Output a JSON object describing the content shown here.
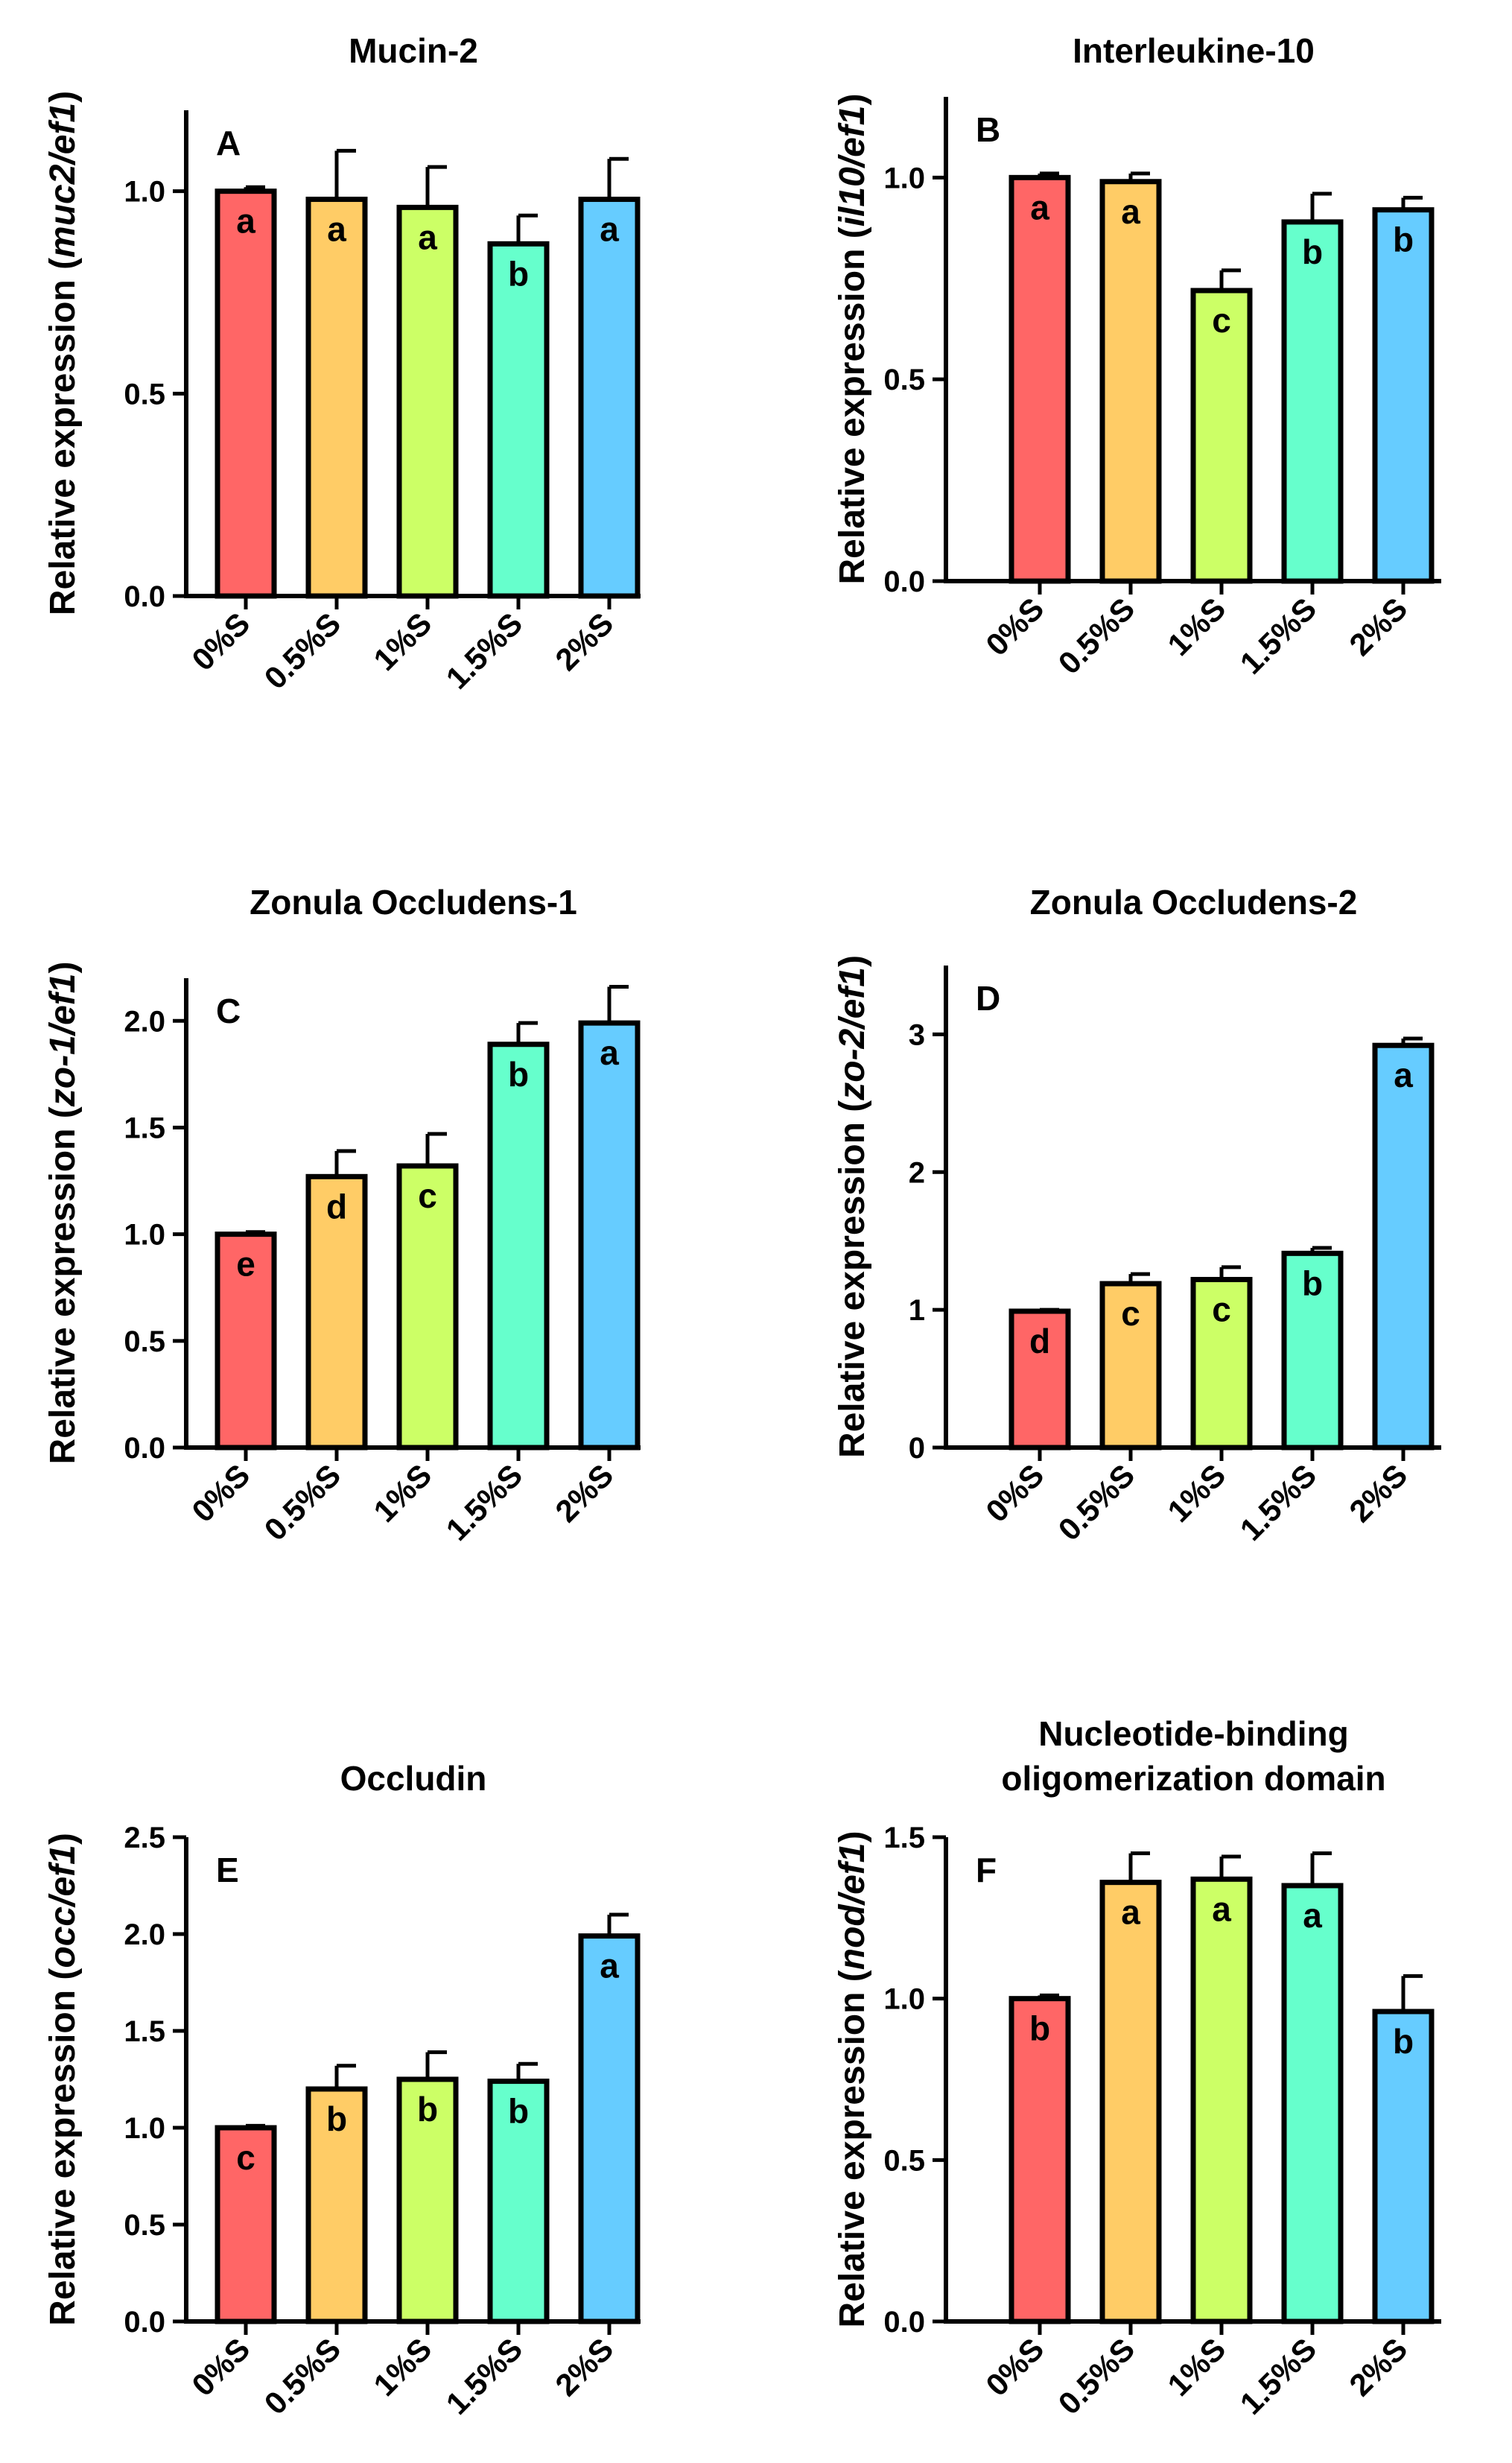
{
  "figure": {
    "categories": [
      "0%S",
      "0.5%S",
      "1%S",
      "1.5%S",
      "2%S"
    ],
    "bar_colors": [
      "#ff6666",
      "#ffcc66",
      "#ccff66",
      "#66ffcc",
      "#66ccff"
    ],
    "ylabel_prefix": "Relative expression ("
  },
  "chart_data": [
    {
      "type": "bar",
      "panel": "A",
      "title": [
        "Mucin-2"
      ],
      "ylabel_italic": "muc2/ef1",
      "ylim": [
        0,
        1.2
      ],
      "yticks": [
        0,
        0.5,
        1
      ],
      "ytick_labels": [
        "0.0",
        "0.5",
        "1.0"
      ],
      "categories": [
        "0%S",
        "0.5%S",
        "1%S",
        "1.5%S",
        "2%S"
      ],
      "values": [
        1.0,
        0.98,
        0.96,
        0.87,
        0.98
      ],
      "errors": [
        0.01,
        0.12,
        0.1,
        0.07,
        0.1
      ],
      "letters": [
        "a",
        "a",
        "a",
        "b",
        "a"
      ]
    },
    {
      "type": "bar",
      "panel": "B",
      "title": [
        "Interleukine-10"
      ],
      "ylabel_italic": "il10/ef1",
      "ylim": [
        0,
        1.2
      ],
      "yticks": [
        0,
        0.5,
        1
      ],
      "ytick_labels": [
        "0.0",
        "0.5",
        "1.0"
      ],
      "categories": [
        "0%S",
        "0.5%S",
        "1%S",
        "1.5%S",
        "2%S"
      ],
      "values": [
        1.0,
        0.99,
        0.72,
        0.89,
        0.92
      ],
      "errors": [
        0.01,
        0.02,
        0.05,
        0.07,
        0.03
      ],
      "letters": [
        "a",
        "a",
        "c",
        "b",
        "b"
      ]
    },
    {
      "type": "bar",
      "panel": "C",
      "title": [
        "Zonula Occludens-1"
      ],
      "ylabel_italic": "zo-1/ef1",
      "ylim": [
        0,
        2.2
      ],
      "yticks": [
        0,
        0.5,
        1,
        1.5,
        2
      ],
      "ytick_labels": [
        "0.0",
        "0.5",
        "1.0",
        "1.5",
        "2.0"
      ],
      "categories": [
        "0%S",
        "0.5%S",
        "1%S",
        "1.5%S",
        "2%S"
      ],
      "values": [
        1.0,
        1.27,
        1.32,
        1.89,
        1.99
      ],
      "errors": [
        0.01,
        0.12,
        0.15,
        0.1,
        0.17
      ],
      "letters": [
        "e",
        "d",
        "c",
        "b",
        "a"
      ]
    },
    {
      "type": "bar",
      "panel": "D",
      "title": [
        "Zonula Occludens-2"
      ],
      "ylabel_italic": "zo-2/ef1",
      "ylim": [
        0,
        3.5
      ],
      "yticks": [
        0,
        1,
        2,
        3
      ],
      "ytick_labels": [
        "0",
        "1",
        "2",
        "3"
      ],
      "categories": [
        "0%S",
        "0.5%S",
        "1%S",
        "1.5%S",
        "2%S"
      ],
      "values": [
        0.99,
        1.19,
        1.22,
        1.41,
        2.92
      ],
      "errors": [
        0.01,
        0.07,
        0.09,
        0.04,
        0.05
      ],
      "letters": [
        "d",
        "c",
        "c",
        "b",
        "a"
      ]
    },
    {
      "type": "bar",
      "panel": "E",
      "title": [
        "Occludin"
      ],
      "ylabel_italic": "occ/ef1",
      "ylim": [
        0,
        2.5
      ],
      "yticks": [
        0,
        0.5,
        1,
        1.5,
        2,
        2.5
      ],
      "ytick_labels": [
        "0.0",
        "0.5",
        "1.0",
        "1.5",
        "2.0",
        "2.5"
      ],
      "categories": [
        "0%S",
        "0.5%S",
        "1%S",
        "1.5%S",
        "2%S"
      ],
      "values": [
        1.0,
        1.2,
        1.25,
        1.24,
        1.99
      ],
      "errors": [
        0.01,
        0.12,
        0.14,
        0.09,
        0.11
      ],
      "letters": [
        "c",
        "b",
        "b",
        "b",
        "a"
      ]
    },
    {
      "type": "bar",
      "panel": "F",
      "title": [
        "Nucleotide-binding",
        "oligomerization domain"
      ],
      "ylabel_italic": "nod/ef1",
      "ylim": [
        0,
        1.5
      ],
      "yticks": [
        0,
        0.5,
        1,
        1.5
      ],
      "ytick_labels": [
        "0.0",
        "0.5",
        "1.0",
        "1.5"
      ],
      "categories": [
        "0%S",
        "0.5%S",
        "1%S",
        "1.5%S",
        "2%S"
      ],
      "values": [
        1.0,
        1.36,
        1.37,
        1.35,
        0.96
      ],
      "errors": [
        0.01,
        0.09,
        0.07,
        0.1,
        0.11
      ],
      "letters": [
        "b",
        "a",
        "a",
        "a",
        "b"
      ]
    }
  ]
}
